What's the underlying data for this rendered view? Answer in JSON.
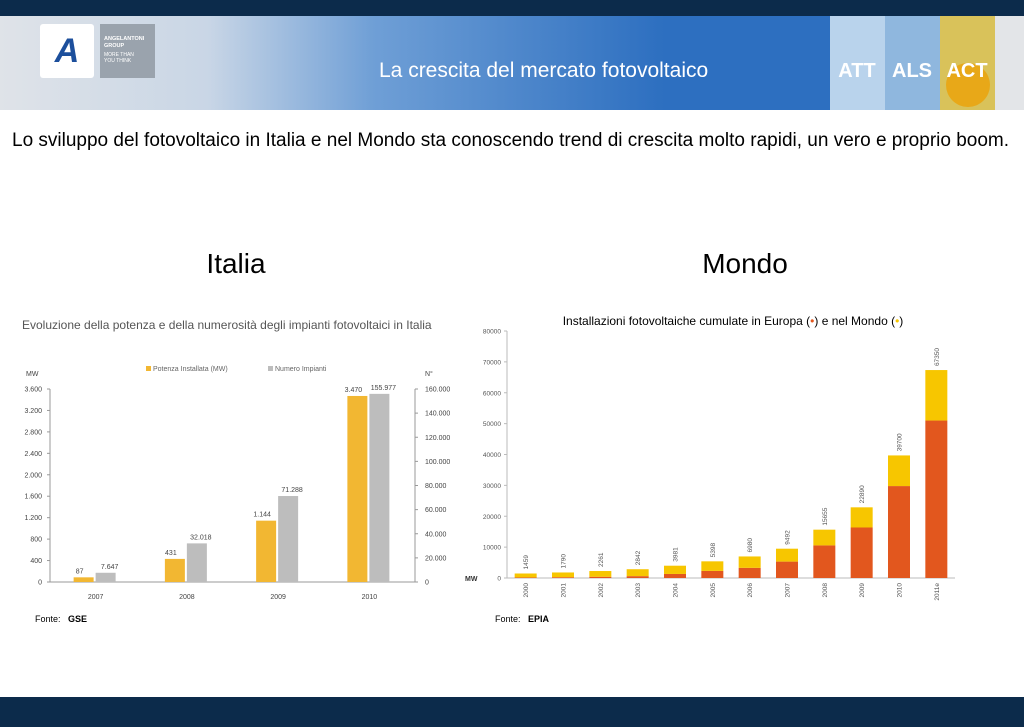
{
  "header": {
    "title": "La crescita del mercato fotovoltaico",
    "logo_text": [
      "ANGELANTONI",
      "GROUP",
      "MORE THAN",
      "YOU THINK"
    ],
    "brands": [
      "ATT",
      "ALS",
      "ACT"
    ]
  },
  "intro": "Lo sviluppo del fotovoltaico in Italia e nel Mondo sta conoscendo trend di crescita molto rapidi, un vero e proprio boom.",
  "sections": [
    "Italia",
    "Mondo"
  ],
  "chart_data": [
    {
      "type": "bar",
      "title": "Evoluzione della potenza e della numerosità degli impianti fotovoltaici in Italia",
      "categories": [
        "2007",
        "2008",
        "2009",
        "2010"
      ],
      "series": [
        {
          "name": "Potenza Installata (MW)",
          "color": "#f2b732",
          "values": [
            87,
            431,
            1144,
            3470
          ],
          "value_labels": [
            "87",
            "431",
            "1.144",
            "3.470"
          ]
        },
        {
          "name": "Numero Impianti",
          "color": "#bdbdbd",
          "axis": "y2",
          "values": [
            7647,
            32018,
            71288,
            155977
          ],
          "value_labels": [
            "7.647",
            "32.018",
            "71.288",
            "155.977"
          ]
        }
      ],
      "ylabel": "MW",
      "y2label": "N°",
      "ylim": [
        0,
        3600
      ],
      "yticks": [
        0,
        400,
        800,
        {
          "value": 1200,
          "label": "1.200"
        },
        {
          "value": 1600,
          "label": "1.600"
        },
        {
          "value": 2000,
          "label": "2.000"
        },
        {
          "value": 2400,
          "label": "2.400"
        },
        {
          "value": 2800,
          "label": "2.800"
        },
        {
          "value": 3200,
          "label": "3.200"
        },
        {
          "value": 3600,
          "label": "3.600"
        }
      ],
      "y2lim": [
        0,
        160000
      ],
      "y2ticks": [
        0,
        {
          "value": 20000,
          "label": "20.000"
        },
        {
          "value": 40000,
          "label": "40.000"
        },
        {
          "value": 60000,
          "label": "60.000"
        },
        {
          "value": 80000,
          "label": "80.000"
        },
        {
          "value": 100000,
          "label": "100.000"
        },
        {
          "value": 120000,
          "label": "120.000"
        },
        {
          "value": 140000,
          "label": "140.000"
        },
        {
          "value": 160000,
          "label": "160.000"
        }
      ],
      "source_prefix": "Fonte:",
      "source": "GSE"
    },
    {
      "type": "bar",
      "stacked": true,
      "title_parts": [
        "Installazioni fotovoltaiche cumulate in Europa (",
        "•",
        ") e nel Mondo (",
        "•",
        ")"
      ],
      "categories": [
        "2000",
        "2001",
        "2002",
        "2003",
        "2004",
        "2005",
        "2006",
        "2007",
        "2008",
        "2009",
        "2010",
        "2011e"
      ],
      "series": [
        {
          "name": "Europa",
          "color": "#e2571e",
          "values": [
            185,
            262,
            400,
            600,
            1306,
            2291,
            3289,
            5312,
            10554,
            16357,
            29777,
            51000
          ]
        },
        {
          "name": "Mondo",
          "color": "#f7c600",
          "values": [
            1274,
            1528,
            1861,
            2242,
            2675,
            3107,
            3691,
            4180,
            5101,
            6533,
            9923,
            16350
          ]
        }
      ],
      "totals": [
        1459,
        1790,
        2261,
        2842,
        3981,
        5398,
        6980,
        9492,
        15655,
        22890,
        39700,
        67350
      ],
      "ylabel": "MW",
      "ylim": [
        0,
        80000
      ],
      "yticks": [
        0,
        10000,
        20000,
        30000,
        40000,
        50000,
        60000,
        70000,
        80000
      ],
      "source_prefix": "Fonte:",
      "source": "EPIA"
    }
  ]
}
